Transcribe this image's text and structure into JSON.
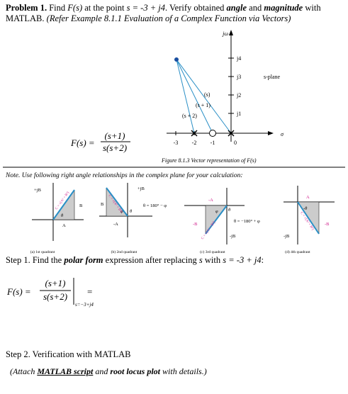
{
  "problem": {
    "label": "Problem 1.",
    "t1": " Find ",
    "f": "F(s)",
    "t2": " at the point ",
    "s": "s = -3 + j4",
    "t3": ". Verify obtained ",
    "angle": "angle",
    "t4": " and ",
    "magnitude": "magnitude",
    "t5": " with MATLAB. ",
    "ref": "(Refer Example 8.1.1 Evaluation of a Complex Function via Vectors)"
  },
  "figure": {
    "jw": "jω",
    "j4": "j4",
    "j3": "j3",
    "j2": "j2",
    "j1": "j1",
    "splane": "s-plane",
    "m3": "-3",
    "m2": "-2",
    "m1": "-1",
    "zero": "0",
    "sigma": "σ",
    "vs": "(s)",
    "vs1": "(s + 1)",
    "vs2": "(s + 2)",
    "caption": "Figure 8.1.3 Vector representation of F(s)",
    "lhs": "F(s) =",
    "num": "(s+1)",
    "den": "s(s+2)"
  },
  "note": "Note. Use following right angle relationships in the complex plane for your calculation:",
  "quadrants": [
    {
      "caption": "(a) 1st quadrant",
      "jb": "+jB",
      "c": "C = √(A² + B²)",
      "b": "B",
      "theta": "θ",
      "a": "A"
    },
    {
      "caption": "(b) 2nd quadrant",
      "jb": "+jB",
      "c": "C = √(A² + B²)",
      "b": "B",
      "theta": "θ",
      "phi": "φ",
      "a": "-A",
      "rel": "θ = 180° − φ"
    },
    {
      "caption": "(c) 3rd quadrant",
      "jb": "-jB",
      "c": "C = √(A² + B²)",
      "b": "-B",
      "theta": "θ",
      "phi": "φ",
      "a": "-A",
      "rel": "θ = −180° + φ"
    },
    {
      "caption": "(d) 4th quadrant",
      "jb": "-jB",
      "c": "C = √(A² + B²)",
      "b": "-B",
      "theta": "-θ",
      "a": "A"
    }
  ],
  "step1": {
    "label": "Step 1.",
    "t1": " Find the ",
    "polar": "polar form",
    "t2": " expression after replacing ",
    "s": "s",
    "t3": " with ",
    "point": "s = -3 + j4",
    "t4": ":",
    "lhs": "F(s) =",
    "num": "(s+1)",
    "den": "s(s+2)",
    "at": "s=−3+j4",
    "eq": "="
  },
  "step2": "Step 2. Verification with MATLAB",
  "attach": {
    "t1": "(Attach ",
    "script": "MATLAB script",
    "t2": " and ",
    "plot": "root locus plot",
    "t3": " with details.)"
  }
}
